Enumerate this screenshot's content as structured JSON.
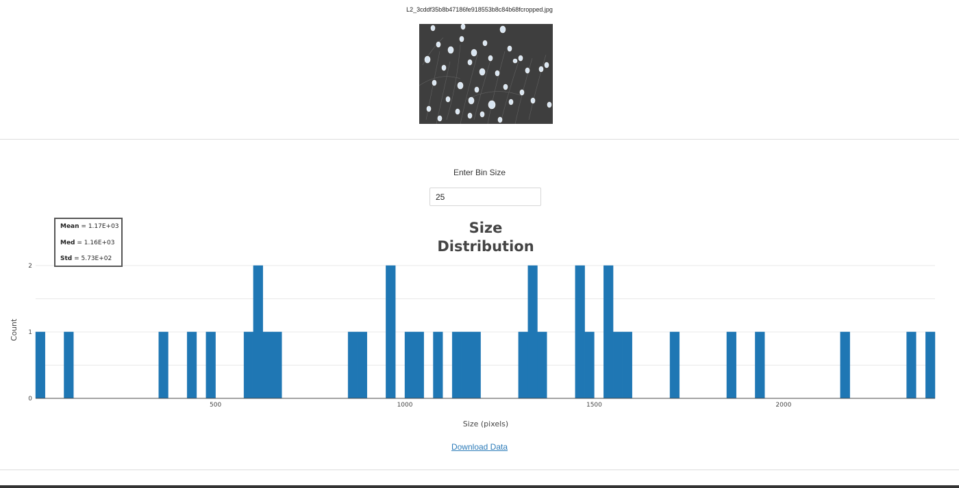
{
  "image": {
    "filename": "L2_3cddf35b8b47186fe918553b8c84b68fcropped.jpg",
    "icon": "cell-micrograph-image"
  },
  "controls": {
    "bin_label": "Enter Bin Size",
    "bin_value": "25"
  },
  "stats": {
    "mean_label": "Mean",
    "mean_value": "1.17E+03",
    "med_label": "Med",
    "med_value": "1.16E+03",
    "std_label": "Std",
    "std_value": "5.73E+02"
  },
  "download": {
    "label": "Download Data"
  },
  "colors": {
    "bar": "#1f77b4",
    "link": "#2a7ab8"
  },
  "chart_data": {
    "type": "bar",
    "title": "Size Distribution",
    "xlabel": "Size (pixels)",
    "ylabel": "Count",
    "bin_width": 25,
    "xlim": [
      25,
      2400
    ],
    "ylim": [
      0,
      2
    ],
    "xticks": [
      500,
      1000,
      1500,
      2000
    ],
    "yticks": [
      0,
      1,
      2
    ],
    "grid": true,
    "bins": [
      {
        "x0": 25,
        "count": 1
      },
      {
        "x0": 100,
        "count": 1
      },
      {
        "x0": 350,
        "count": 1
      },
      {
        "x0": 425,
        "count": 1
      },
      {
        "x0": 475,
        "count": 1
      },
      {
        "x0": 575,
        "count": 1
      },
      {
        "x0": 600,
        "count": 2
      },
      {
        "x0": 625,
        "count": 1
      },
      {
        "x0": 650,
        "count": 1
      },
      {
        "x0": 850,
        "count": 1
      },
      {
        "x0": 875,
        "count": 1
      },
      {
        "x0": 950,
        "count": 2
      },
      {
        "x0": 1000,
        "count": 1
      },
      {
        "x0": 1025,
        "count": 1
      },
      {
        "x0": 1075,
        "count": 1
      },
      {
        "x0": 1125,
        "count": 1
      },
      {
        "x0": 1150,
        "count": 1
      },
      {
        "x0": 1175,
        "count": 1
      },
      {
        "x0": 1300,
        "count": 1
      },
      {
        "x0": 1325,
        "count": 2
      },
      {
        "x0": 1350,
        "count": 1
      },
      {
        "x0": 1450,
        "count": 2
      },
      {
        "x0": 1475,
        "count": 1
      },
      {
        "x0": 1525,
        "count": 2
      },
      {
        "x0": 1550,
        "count": 1
      },
      {
        "x0": 1575,
        "count": 1
      },
      {
        "x0": 1700,
        "count": 1
      },
      {
        "x0": 1850,
        "count": 1
      },
      {
        "x0": 1925,
        "count": 1
      },
      {
        "x0": 2150,
        "count": 1
      },
      {
        "x0": 2325,
        "count": 1
      },
      {
        "x0": 2375,
        "count": 1
      }
    ]
  }
}
